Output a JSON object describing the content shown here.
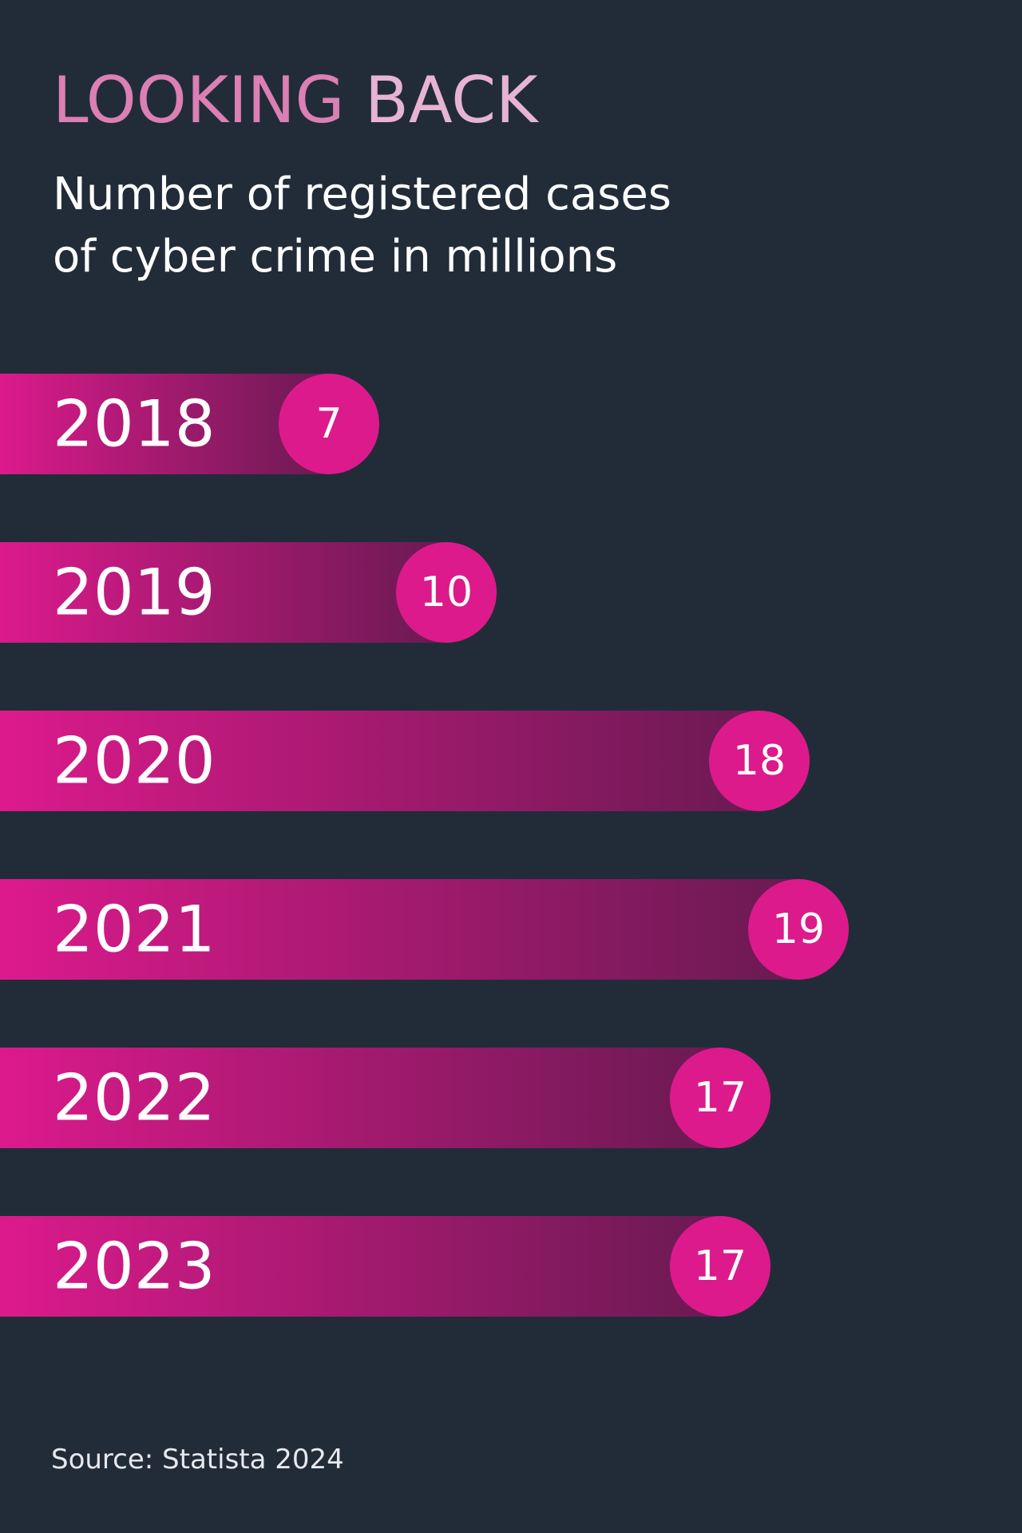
{
  "header": {
    "title_part1": "LOOKING",
    "title_part2": "BACK",
    "subtitle_line1": "Number of registered cases",
    "subtitle_line2": "of cyber crime in millions"
  },
  "footer": {
    "source": "Source: Statista 2024"
  },
  "colors": {
    "background": "#222c39",
    "accent": "#dc1a8c",
    "bar_start": "#dc1a8c",
    "bar_end": "#6a1a52"
  },
  "chart_data": {
    "type": "bar",
    "orientation": "horizontal",
    "categories": [
      "2018",
      "2019",
      "2020",
      "2021",
      "2022",
      "2023"
    ],
    "values": [
      7,
      10,
      18,
      19,
      17,
      17
    ],
    "value_labels": [
      "7",
      "10",
      "18",
      "19",
      "17",
      "17"
    ],
    "title": "LOOKING BACK",
    "subtitle": "Number of registered cases of cyber crime in millions",
    "xlabel": "",
    "ylabel": "",
    "grid": false,
    "legend": "none"
  }
}
